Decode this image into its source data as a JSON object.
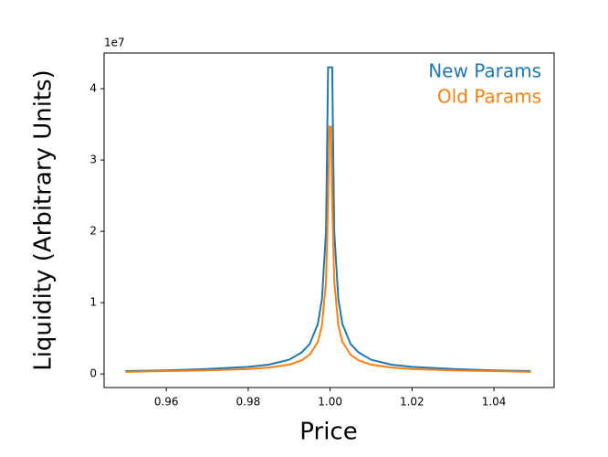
{
  "chart_data": {
    "type": "line",
    "x_label": "Price",
    "y_label": "Liquidity (Arbitrary Units)",
    "y_offset_label": "1e7",
    "x": [
      0.95,
      0.96,
      0.97,
      0.98,
      0.985,
      0.99,
      0.993,
      0.995,
      0.997,
      0.998,
      0.999,
      0.9995,
      0.9998,
      1.0002,
      1.0005,
      1.001,
      1.002,
      1.003,
      1.005,
      1.007,
      1.01,
      1.015,
      1.02,
      1.03,
      1.04,
      1.049
    ],
    "series": [
      {
        "name": "New Params",
        "color": "#1f77b4",
        "values": [
          0.04,
          0.05,
          0.07,
          0.1,
          0.13,
          0.2,
          0.3,
          0.42,
          0.7,
          1.05,
          2.0,
          4.3,
          4.3,
          4.3,
          4.3,
          2.0,
          1.05,
          0.7,
          0.42,
          0.3,
          0.2,
          0.13,
          0.1,
          0.07,
          0.05,
          0.04
        ]
      },
      {
        "name": "Old Params",
        "color": "#ff7f0e",
        "values": [
          0.03,
          0.04,
          0.05,
          0.07,
          0.09,
          0.13,
          0.19,
          0.27,
          0.45,
          0.68,
          1.3,
          2.4,
          3.47,
          3.47,
          2.4,
          1.3,
          0.68,
          0.45,
          0.27,
          0.19,
          0.13,
          0.09,
          0.07,
          0.05,
          0.04,
          0.03
        ]
      }
    ],
    "xlim": [
      0.9448,
      1.0547
    ],
    "xticks": [
      0.96,
      0.98,
      {
        "value": 1,
        "label": "1.00"
      },
      1.02,
      1.04
    ],
    "ylim": [
      -0.19,
      4.5
    ],
    "yticks": [
      0,
      1,
      2,
      3,
      4
    ],
    "legend": "upper right"
  }
}
